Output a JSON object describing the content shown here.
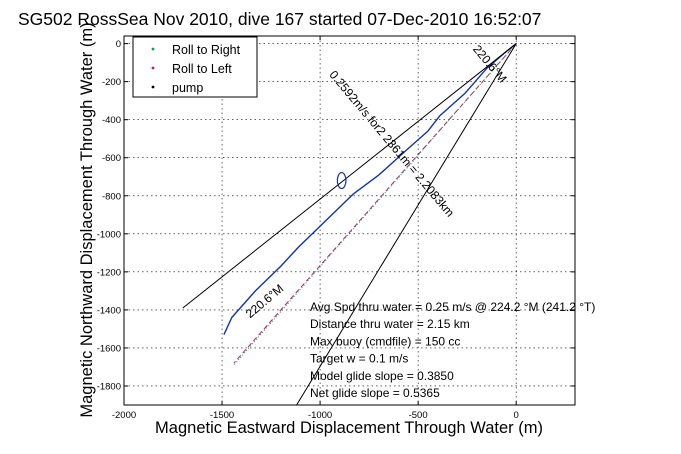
{
  "chart_data": {
    "type": "line",
    "title": "SG502 RossSea Nov 2010, dive 167 started 07-Dec-2010 16:52:07",
    "xlabel": "Magnetic Eastward Displacement Through Water (m)",
    "ylabel": "Magnetic Northward Displacement Through Water (m)",
    "xlim": [
      -2000,
      300
    ],
    "ylim": [
      -1900,
      40
    ],
    "xticks": [
      -2000,
      -1500,
      -1000,
      -500,
      0
    ],
    "yticks": [
      0,
      -200,
      -400,
      -600,
      -800,
      -1000,
      -1200,
      -1400,
      -1600,
      -1800
    ],
    "grid": true,
    "legend_position": "top-left",
    "legend": [
      {
        "label": "Roll to Right",
        "color": "#00aa44",
        "marker": "dot"
      },
      {
        "label": "Roll to Left",
        "color": "#cc1177",
        "marker": "dot"
      },
      {
        "label": "pump",
        "color": "#000000",
        "marker": "dot"
      }
    ],
    "series": [
      {
        "color": "#1133aa",
        "style": "solid",
        "x": [
          0,
          -60,
          -150,
          -260,
          -390,
          -450,
          -560,
          -700,
          -830,
          -960,
          -1110,
          -1200,
          -1330,
          -1450,
          -1490
        ],
        "y": [
          0,
          -50,
          -130,
          -260,
          -380,
          -460,
          -560,
          -690,
          -790,
          -920,
          -1070,
          -1170,
          -1300,
          -1440,
          -1530
        ]
      },
      {
        "color": "#cc1177",
        "style": "dashed",
        "x": [
          0,
          -1440
        ],
        "y": [
          0,
          -1680
        ]
      },
      {
        "color": "#00aa44",
        "style": "dotted",
        "x": [
          0,
          -1440
        ],
        "y": [
          0,
          -1690
        ]
      },
      {
        "color": "#000000",
        "style": "thin",
        "x": [
          0,
          -1700
        ],
        "y": [
          0,
          -1390
        ]
      },
      {
        "color": "#000000",
        "style": "thin",
        "x": [
          0,
          -1120
        ],
        "y": [
          0,
          -1900
        ]
      }
    ],
    "ellipse": {
      "cx": -890,
      "cy": -720,
      "rx": 22,
      "ry": 42,
      "color": "#1133aa"
    },
    "annotations": [
      {
        "text": "0.2592m/s for2 2361m = 2.2083km",
        "x": -650,
        "y": -540,
        "rotation": 50
      },
      {
        "text": "220.6°M",
        "x": -150,
        "y": -120,
        "rotation": 50
      },
      {
        "text": "220.6°M",
        "x": -1270,
        "y": -1370,
        "rotation": -40
      }
    ],
    "info_lines": [
      "Avg Spd thru water = 0.25 m/s @ 224.2 °M (241.2 °T)",
      "Distance thru water = 2.15 km",
      "Max buoy (cmdfile) = 150 cc",
      "Target w = 0.1 m/s",
      "Model glide slope = 0.3850",
      "Net glide slope = 0.5365"
    ]
  }
}
